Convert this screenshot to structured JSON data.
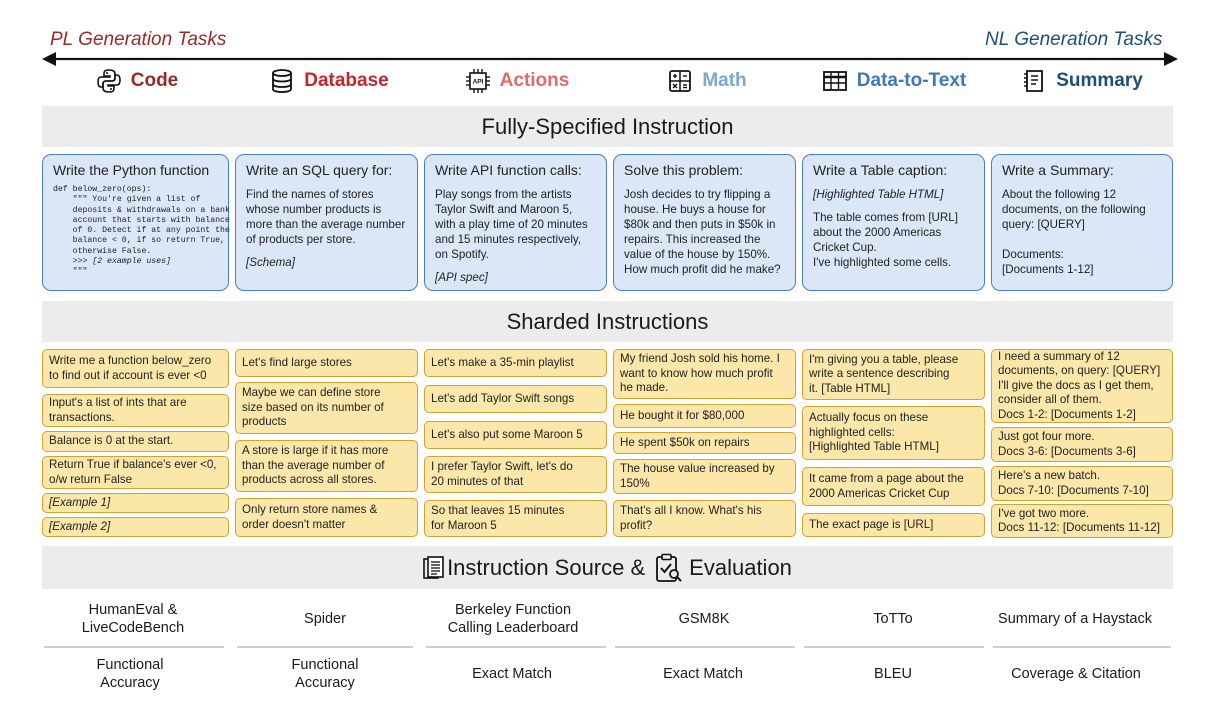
{
  "axis": {
    "left_label": "PL Generation Tasks",
    "right_label": "NL Generation Tasks"
  },
  "tasks": [
    {
      "name": "Code",
      "icon": "python-icon",
      "color": "#9a2a26"
    },
    {
      "name": "Database",
      "icon": "database-icon",
      "color": "#c4272b"
    },
    {
      "name": "Actions",
      "icon": "api-chip-icon",
      "color": "#e26a6a"
    },
    {
      "name": "Math",
      "icon": "calculator-icon",
      "color": "#7aa6d8"
    },
    {
      "name": "Data-to-Text",
      "icon": "table-icon",
      "color": "#3a78c0"
    },
    {
      "name": "Summary",
      "icon": "document-summary-icon",
      "color": "#1f4e79"
    }
  ],
  "fully_specified": {
    "heading": "Fully-Specified Instruction",
    "boxes": [
      {
        "title": "Write the Python function",
        "code": "def below_zero(ops):\n    \"\"\" You're given a list of\n    deposits & withdrawals on a bank\n    account that starts with balance\n    of 0. Detect if at any point the\n    balance < 0, if so return True,\n    otherwise False.\n    >>> ",
        "code_italic": "[2 example uses]",
        "code_end": "\n    \"\"\""
      },
      {
        "title": "Write an SQL query for:",
        "body": "Find the names of stores\nwhose number products is\nmore than the average number\nof products per store.",
        "extra": "[Schema]"
      },
      {
        "title": "Write API function calls:",
        "body": "Play songs from the artists\nTaylor Swift and Maroon 5,\nwith a play time of 20 minutes\nand 15 minutes respectively,\non Spotify.",
        "extra": "[API spec]"
      },
      {
        "title": "Solve this problem:",
        "body": "Josh decides to try flipping a\nhouse. He buys a house for\n$80k and then puts in $50k in\nrepairs. This increased the\nvalue of the house by 150%.\nHow much profit did he make?"
      },
      {
        "title": "Write a Table caption:",
        "pre": "[Highlighted Table HTML]",
        "body": "The table comes from [URL]\nabout the 2000 Americas\nCricket Cup.\nI've highlighted some cells."
      },
      {
        "title": "Write a Summary:",
        "body": "About the following 12\ndocuments, on the following\nquery: [QUERY]\n\nDocuments:\n[Documents 1-12]"
      }
    ]
  },
  "sharded": {
    "heading": "Sharded Instructions",
    "columns": [
      [
        "Write me a function below_zero\nto find out if account is ever <0",
        "Input's a list of ints that are\ntransactions.",
        "Balance is 0 at the start.",
        "Return True if balance's ever <0,\no/w return False",
        "[Example 1]",
        "[Example 2]"
      ],
      [
        "Let's find large stores",
        "Maybe we can define store\nsize based on its number of\nproducts",
        "A store is large if it has more\nthan the average number of\nproducts across all stores.",
        "Only return store names &\norder doesn't matter"
      ],
      [
        "Let's make a 35-min playlist",
        "Let's add Taylor Swift songs",
        "Let's also put some Maroon 5",
        "I prefer Taylor Swift, let's do\n20 minutes of that",
        "So that leaves 15 minutes\nfor Maroon 5"
      ],
      [
        "My friend Josh sold his home. I\nwant to know how much profit\nhe made.",
        "He bought it for $80,000",
        "He spent $50k on repairs",
        "The house value increased by\n150%",
        "That's all I know. What's his\nprofit?"
      ],
      [
        "I'm giving you a table, please\nwrite a sentence describing\nit. [Table HTML]",
        "Actually focus on these\nhighlighted cells:\n[Highlighted Table HTML]",
        "It came from a page about the\n2000 Americas Cricket Cup",
        "The exact page is [URL]"
      ],
      [
        "I need a summary of 12\ndocuments, on query: [QUERY]\nI'll give the docs as I get them,\nconsider all of them.\nDocs 1-2: [Documents 1-2]",
        "Just got four more.\nDocs 3-6: [Documents 3-6]",
        "Here's a new batch.\nDocs 7-10: [Documents 7-10]",
        "I've got two more.\nDocs 11-12: [Documents 11-12]"
      ]
    ]
  },
  "evaluation": {
    "heading_part1": "Instruction Source &",
    "heading_part2": "Evaluation",
    "sources": [
      "HumanEval &\nLiveCodeBench",
      "Spider",
      "Berkeley Function\nCalling Leaderboard",
      "GSM8K",
      "ToTTo",
      "Summary of a Haystack"
    ],
    "metrics": [
      "Functional\nAccuracy",
      "Functional\nAccuracy",
      "Exact Match",
      "Exact Match",
      "BLEU",
      "Coverage & Citation"
    ]
  }
}
